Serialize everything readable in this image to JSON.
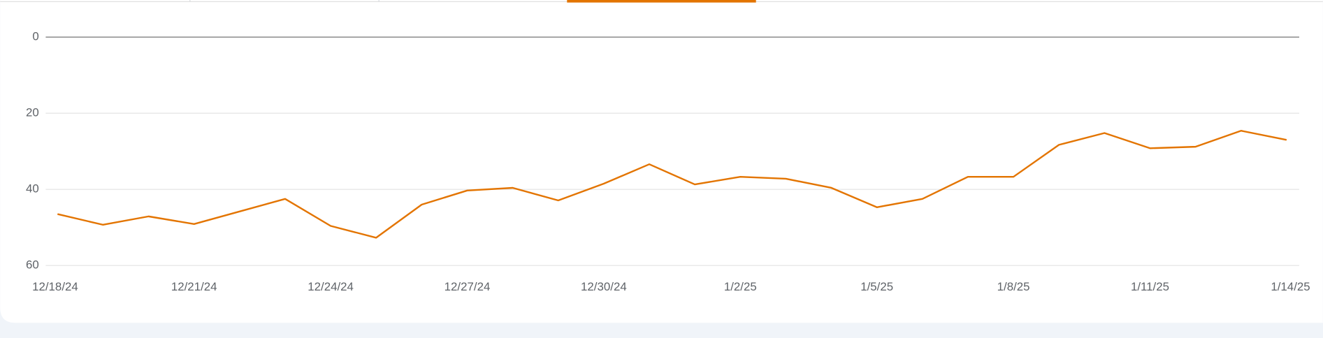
{
  "chart_data": {
    "type": "line",
    "categories": [
      "12/18/24",
      null,
      null,
      "12/21/24",
      null,
      null,
      "12/24/24",
      null,
      null,
      "12/27/24",
      null,
      null,
      "12/30/24",
      null,
      null,
      "1/2/25",
      null,
      null,
      "1/5/25",
      null,
      null,
      "1/8/25",
      null,
      null,
      "1/11/25",
      null,
      null,
      "1/14/25"
    ],
    "series": [
      {
        "color": "#e37400",
        "values": [
          46.5,
          49.3,
          47.1,
          49.1,
          45.8,
          42.5,
          49.6,
          52.7,
          44.0,
          40.3,
          39.6,
          42.9,
          38.5,
          33.4,
          38.7,
          36.7,
          37.2,
          39.6,
          44.7,
          42.5,
          36.7,
          36.7,
          28.3,
          25.2,
          29.2,
          28.8,
          24.6,
          27.0
        ]
      }
    ],
    "ylim": [
      0,
      60
    ],
    "yticks": [
      0,
      20,
      40,
      60
    ],
    "y_reversed": true,
    "grid": true
  }
}
